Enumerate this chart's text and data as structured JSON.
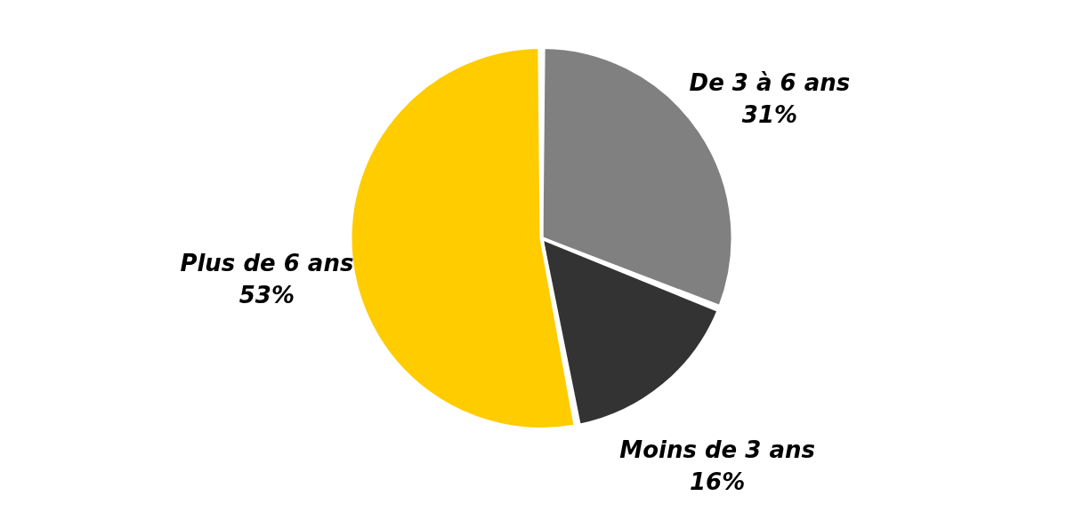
{
  "chart_data": {
    "type": "pie",
    "categories": [
      "De 3 à 6 ans",
      "Moins de 3 ans",
      "Plus de 6 ans"
    ],
    "values": [
      31,
      16,
      53
    ],
    "colors": [
      "#808080",
      "#333333",
      "#ffcc00"
    ],
    "value_labels": [
      "31%",
      "16%",
      "53%"
    ]
  }
}
